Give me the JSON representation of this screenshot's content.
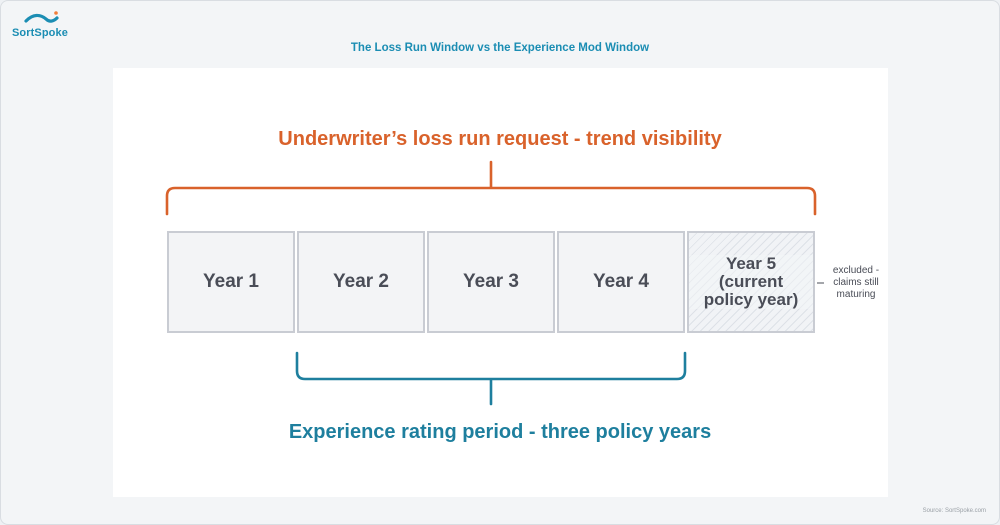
{
  "brand": {
    "name": "SortSpoke",
    "logo_icon": "wave-icon",
    "color": "#1b8db3"
  },
  "page_title": "The Loss Run Window vs the Experience Mod Window",
  "top_bracket": {
    "label": "Underwriter’s loss run request - trend visibility",
    "color": "#d9622b"
  },
  "bottom_bracket": {
    "label": "Experience rating period - three policy years",
    "color": "#1e7f9e"
  },
  "years": [
    {
      "label": "Year 1"
    },
    {
      "label": "Year 2"
    },
    {
      "label": "Year 3"
    },
    {
      "label": "Year 4"
    },
    {
      "label": "Year 5 (current policy year)",
      "hatched": true
    }
  ],
  "note": "excluded - claims still maturing",
  "source": "Source: SortSpoke.com"
}
